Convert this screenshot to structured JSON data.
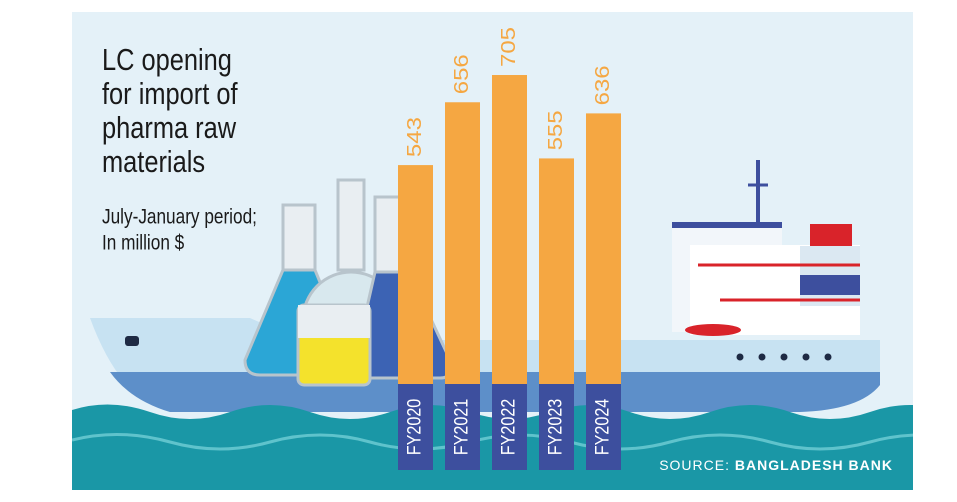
{
  "chart_data": {
    "type": "bar",
    "title": [
      "LC opening",
      "for import of",
      "pharma raw",
      "materials"
    ],
    "subtitle": [
      "July-January period;",
      "In million $"
    ],
    "categories": [
      "FY2020",
      "FY2021",
      "FY2022",
      "FY2023",
      "FY2024"
    ],
    "values": [
      543,
      656,
      705,
      555,
      636
    ],
    "color": "#f5a742",
    "source_label": "SOURCE:",
    "source": "BANGLADESH BANK"
  }
}
